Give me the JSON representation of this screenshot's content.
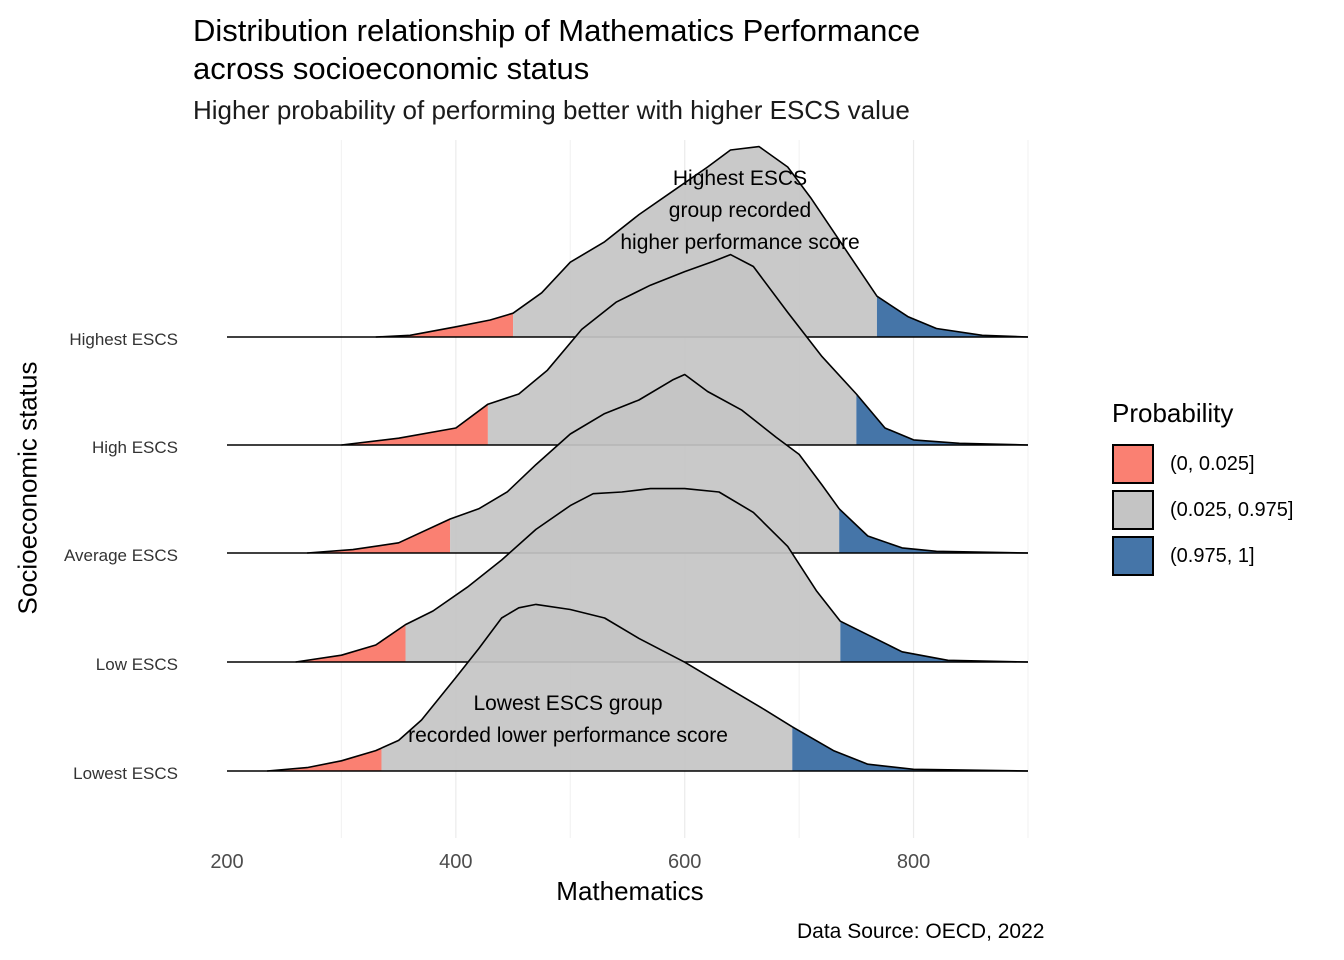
{
  "title": "Distribution relationship of Mathematics Performance\nacross socioeconomic status",
  "subtitle": "Higher probability of performing better with higher ESCS value",
  "caption": "Data Source: OECD, 2022",
  "chart_data": {
    "type": "ridgeline",
    "xlabel": "Mathematics",
    "ylabel": "Socioeconomic status",
    "xlim": [
      200,
      900
    ],
    "x_ticks": [
      200,
      400,
      600,
      800
    ],
    "grid": true,
    "legend": {
      "title": "Probability",
      "placement": "right",
      "entries": [
        {
          "label": "(0, 0.025]",
          "color": "#FA8072"
        },
        {
          "label": "(0.025, 0.975]",
          "color": "#C4C4C4"
        },
        {
          "label": "(0.975, 1]",
          "color": "#4575A8"
        }
      ]
    },
    "series": [
      {
        "name": "Lowest ESCS",
        "q025": 335,
        "q975": 694,
        "density": [
          [
            235,
            0
          ],
          [
            270,
            0.02
          ],
          [
            300,
            0.06
          ],
          [
            330,
            0.12
          ],
          [
            350,
            0.18
          ],
          [
            370,
            0.3
          ],
          [
            400,
            0.55
          ],
          [
            420,
            0.72
          ],
          [
            440,
            0.9
          ],
          [
            455,
            0.96
          ],
          [
            470,
            0.98
          ],
          [
            500,
            0.95
          ],
          [
            530,
            0.9
          ],
          [
            560,
            0.78
          ],
          [
            600,
            0.64
          ],
          [
            640,
            0.48
          ],
          [
            670,
            0.36
          ],
          [
            694,
            0.26
          ],
          [
            730,
            0.12
          ],
          [
            760,
            0.04
          ],
          [
            800,
            0.01
          ],
          [
            900,
            0
          ]
        ]
      },
      {
        "name": "Low ESCS",
        "q025": 356,
        "q975": 736,
        "density": [
          [
            260,
            0
          ],
          [
            300,
            0.04
          ],
          [
            330,
            0.1
          ],
          [
            356,
            0.22
          ],
          [
            380,
            0.3
          ],
          [
            410,
            0.44
          ],
          [
            440,
            0.6
          ],
          [
            470,
            0.78
          ],
          [
            500,
            0.92
          ],
          [
            520,
            0.99
          ],
          [
            545,
            1.0
          ],
          [
            570,
            1.02
          ],
          [
            600,
            1.02
          ],
          [
            630,
            1.0
          ],
          [
            660,
            0.88
          ],
          [
            690,
            0.68
          ],
          [
            715,
            0.42
          ],
          [
            736,
            0.24
          ],
          [
            760,
            0.16
          ],
          [
            790,
            0.06
          ],
          [
            830,
            0.01
          ],
          [
            900,
            0
          ]
        ]
      },
      {
        "name": "Average ESCS",
        "q025": 395,
        "q975": 735,
        "density": [
          [
            270,
            0
          ],
          [
            310,
            0.02
          ],
          [
            350,
            0.06
          ],
          [
            395,
            0.2
          ],
          [
            420,
            0.26
          ],
          [
            445,
            0.36
          ],
          [
            470,
            0.52
          ],
          [
            500,
            0.7
          ],
          [
            530,
            0.82
          ],
          [
            560,
            0.9
          ],
          [
            590,
            1.02
          ],
          [
            600,
            1.05
          ],
          [
            620,
            0.95
          ],
          [
            650,
            0.84
          ],
          [
            680,
            0.68
          ],
          [
            700,
            0.58
          ],
          [
            720,
            0.4
          ],
          [
            735,
            0.26
          ],
          [
            760,
            0.1
          ],
          [
            790,
            0.03
          ],
          [
            820,
            0.01
          ],
          [
            900,
            0
          ]
        ]
      },
      {
        "name": "High ESCS",
        "q025": 428,
        "q975": 750,
        "density": [
          [
            300,
            0
          ],
          [
            350,
            0.04
          ],
          [
            400,
            0.1
          ],
          [
            428,
            0.24
          ],
          [
            455,
            0.3
          ],
          [
            480,
            0.44
          ],
          [
            510,
            0.68
          ],
          [
            540,
            0.84
          ],
          [
            570,
            0.94
          ],
          [
            600,
            1.02
          ],
          [
            625,
            1.08
          ],
          [
            640,
            1.12
          ],
          [
            660,
            1.05
          ],
          [
            690,
            0.78
          ],
          [
            720,
            0.52
          ],
          [
            750,
            0.3
          ],
          [
            775,
            0.1
          ],
          [
            800,
            0.03
          ],
          [
            840,
            0.01
          ],
          [
            900,
            0
          ]
        ]
      },
      {
        "name": "Highest ESCS",
        "q025": 450,
        "q975": 768,
        "density": [
          [
            330,
            0
          ],
          [
            360,
            0.01
          ],
          [
            400,
            0.06
          ],
          [
            430,
            0.1
          ],
          [
            450,
            0.14
          ],
          [
            475,
            0.26
          ],
          [
            500,
            0.44
          ],
          [
            530,
            0.56
          ],
          [
            560,
            0.72
          ],
          [
            590,
            0.86
          ],
          [
            620,
            1.0
          ],
          [
            640,
            1.1
          ],
          [
            665,
            1.12
          ],
          [
            690,
            1.0
          ],
          [
            710,
            0.82
          ],
          [
            740,
            0.52
          ],
          [
            768,
            0.24
          ],
          [
            795,
            0.12
          ],
          [
            820,
            0.05
          ],
          [
            860,
            0.01
          ],
          [
            900,
            0
          ]
        ]
      }
    ],
    "annotations": [
      {
        "text": "Highest ESCS\ngroup recorded\nhigher performance score",
        "x": 600,
        "y": "Highest ESCS"
      },
      {
        "text": "Lowest ESCS group\nrecorded lower performance score",
        "x": 500,
        "y": "Lowest ESCS"
      }
    ]
  }
}
